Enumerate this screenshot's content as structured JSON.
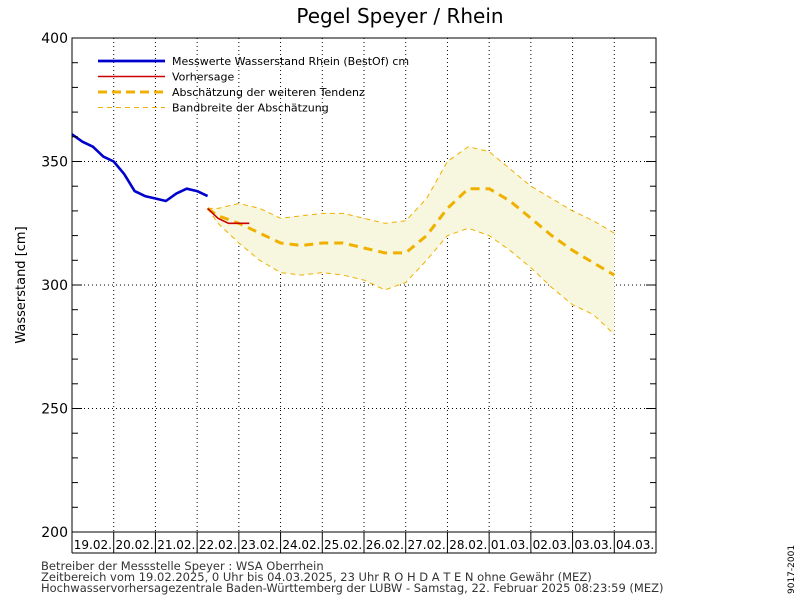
{
  "chart_data": {
    "type": "line",
    "title": "Pegel Speyer / Rhein",
    "ylabel": "Wasserstand [cm]",
    "xlabel": "",
    "ylim": [
      200,
      400
    ],
    "yticks": [
      200,
      250,
      300,
      350,
      400
    ],
    "x_axis": {
      "start": "19.02.2025 00:00",
      "end": "04.03.2025 23:00",
      "day_labels": [
        "19.02.",
        "20.02.",
        "21.02.",
        "22.02.",
        "23.02.",
        "24.02.",
        "25.02.",
        "26.02.",
        "27.02.",
        "28.02.",
        "01.03.",
        "02.03.",
        "03.03.",
        "04.03."
      ]
    },
    "grid": true,
    "legend_position": "top-left",
    "legend": [
      {
        "label": "Messwerte Wasserstand Rhein (BestOf)   cm",
        "color": "#0000cc",
        "style": "solid-thick"
      },
      {
        "label": "Vorhersage",
        "color": "#cc0000",
        "style": "solid"
      },
      {
        "label": "Abschätzung der weiteren Tendenz",
        "color": "#f0b000",
        "style": "dashed-thick"
      },
      {
        "label": "Bandbreite der Abschätzung",
        "color": "#f0b000",
        "style": "dashed-thin"
      }
    ],
    "colors": {
      "measured": "#0000cc",
      "forecast": "#cc0000",
      "tendency": "#f0b000",
      "band_fill": "#f7f7df"
    },
    "series": [
      {
        "name": "Messwerte Wasserstand Rhein (BestOf)   cm",
        "x": [
          "19.02. 00:00",
          "19.02. 06:00",
          "19.02. 12:00",
          "19.02. 18:00",
          "20.02. 00:00",
          "20.02. 06:00",
          "20.02. 12:00",
          "20.02. 18:00",
          "21.02. 00:00",
          "21.02. 06:00",
          "21.02. 12:00",
          "21.02. 18:00",
          "22.02. 00:00",
          "22.02. 06:00"
        ],
        "y": [
          361,
          358,
          356,
          352,
          350,
          345,
          338,
          336,
          335,
          334,
          337,
          339,
          338,
          336
        ]
      },
      {
        "name": "Vorhersage",
        "x": [
          "22.02. 06:00",
          "22.02. 12:00",
          "22.02. 18:00",
          "23.02. 00:00",
          "23.02. 06:00"
        ],
        "y": [
          331,
          327,
          325,
          325,
          325
        ]
      },
      {
        "name": "Abschätzung der weiteren Tendenz",
        "x": [
          "22.02. 06:00",
          "22.02. 12:00",
          "23.02. 00:00",
          "23.02. 12:00",
          "24.02. 00:00",
          "24.02. 12:00",
          "25.02. 00:00",
          "25.02. 12:00",
          "26.02. 00:00",
          "26.02. 12:00",
          "27.02. 00:00",
          "27.02. 12:00",
          "28.02. 00:00",
          "28.02. 12:00",
          "01.03. 00:00",
          "01.03. 12:00",
          "02.03. 00:00",
          "02.03. 12:00",
          "03.03. 00:00",
          "03.03. 12:00",
          "04.03. 00:00"
        ],
        "y": [
          331,
          328,
          325,
          321,
          317,
          316,
          317,
          317,
          315,
          313,
          313,
          320,
          331,
          339,
          339,
          334,
          327,
          320,
          314,
          309,
          304
        ]
      },
      {
        "name": "Bandbreite der Abschätzung (oben)",
        "x": [
          "22.02. 06:00",
          "22.02. 12:00",
          "23.02. 00:00",
          "23.02. 12:00",
          "24.02. 00:00",
          "24.02. 12:00",
          "25.02. 00:00",
          "25.02. 12:00",
          "26.02. 00:00",
          "26.02. 12:00",
          "27.02. 00:00",
          "27.02. 12:00",
          "28.02. 00:00",
          "28.02. 12:00",
          "01.03. 00:00",
          "01.03. 12:00",
          "02.03. 00:00",
          "02.03. 12:00",
          "03.03. 00:00",
          "03.03. 12:00",
          "04.03. 00:00"
        ],
        "y": [
          331,
          331,
          333,
          331,
          327,
          328,
          329,
          329,
          327,
          325,
          326,
          335,
          350,
          356,
          354,
          347,
          340,
          335,
          330,
          326,
          321
        ]
      },
      {
        "name": "Bandbreite der Abschätzung (unten)",
        "x": [
          "22.02. 06:00",
          "22.02. 12:00",
          "23.02. 00:00",
          "23.02. 12:00",
          "24.02. 00:00",
          "24.02. 12:00",
          "25.02. 00:00",
          "25.02. 12:00",
          "26.02. 00:00",
          "26.02. 12:00",
          "27.02. 00:00",
          "27.02. 12:00",
          "28.02. 00:00",
          "28.02. 12:00",
          "01.03. 00:00",
          "01.03. 12:00",
          "02.03. 00:00",
          "02.03. 12:00",
          "03.03. 00:00",
          "03.03. 12:00",
          "04.03. 00:00"
        ],
        "y": [
          331,
          325,
          317,
          310,
          305,
          304,
          305,
          304,
          302,
          298,
          301,
          310,
          320,
          323,
          320,
          314,
          307,
          299,
          292,
          288,
          280
        ]
      }
    ]
  },
  "footer": {
    "line1": "Betreiber der Messstelle Speyer : WSA Oberrhein",
    "line2": "Zeitbereich vom 19.02.2025, 0 Uhr bis 04.03.2025, 23 Uhr    R O H D A T E N ohne Gewähr (MEZ)",
    "line3": "Hochwasservorhersagezentrale Baden-Württemberg der LUBW - Samstag, 22. Februar 2025 08:23:59 (MEZ)",
    "code": "9017-2001"
  }
}
